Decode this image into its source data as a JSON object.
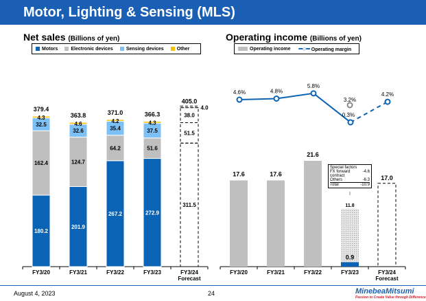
{
  "header": {
    "title": "Motor, Lighting & Sensing (MLS)"
  },
  "net_sales": {
    "title": "Net sales",
    "unit": "(Billions of yen)"
  },
  "operating": {
    "title": "Operating income",
    "unit": "(Billions of yen)"
  },
  "special_factors": {
    "title": "Special factors",
    "rows": [
      {
        "label": "FX forward contract",
        "value": "-4.6"
      },
      {
        "label": "Others",
        "value": "-6.3"
      },
      {
        "label": "Total",
        "value": "-10.9"
      }
    ]
  },
  "footer": {
    "date": "August 4, 2023",
    "page": "24",
    "logo": "MinebeaMitsumi",
    "tagline": "Passion to Create Value through Difference"
  },
  "chart_data": [
    {
      "type": "bar",
      "stacked": true,
      "title": "Net sales (Billions of yen)",
      "categories": [
        "FY3/20",
        "FY3/21",
        "FY3/22",
        "FY3/23",
        "FY3/24 Forecast"
      ],
      "series": [
        {
          "name": "Motors",
          "color": "#0b63b5",
          "values": [
            180.2,
            201.9,
            267.2,
            272.9,
            311.5
          ]
        },
        {
          "name": "Electronic devices",
          "color": "#bfbfbf",
          "values": [
            162.4,
            124.7,
            64.2,
            51.6,
            51.5
          ]
        },
        {
          "name": "Sensing devices",
          "color": "#7cc0f5",
          "values": [
            32.5,
            32.6,
            35.4,
            37.5,
            38.0
          ]
        },
        {
          "name": "Other",
          "color": "#f5c000",
          "values": [
            4.3,
            4.6,
            4.2,
            4.3,
            4.0
          ]
        }
      ],
      "totals": [
        "379.4",
        "363.8",
        "371.0",
        "366.3",
        "405.0"
      ],
      "forecast_index": 4
    },
    {
      "type": "bar",
      "title": "Operating income (Billions of yen)",
      "categories": [
        "FY3/20",
        "FY3/21",
        "FY3/22",
        "FY3/23",
        "FY3/24 Forecast"
      ],
      "series": [
        {
          "name": "Operating income",
          "color": "#bfbfbf",
          "values": [
            17.6,
            17.6,
            21.6,
            0.9,
            17.0
          ]
        },
        {
          "name": "Operating margin",
          "color": "#0b63b5",
          "type": "line",
          "values": [
            4.6,
            4.8,
            5.8,
            0.3,
            4.2
          ],
          "labels": [
            "4.6%",
            "4.8%",
            "5.8%",
            "0.3%",
            "4.2%"
          ]
        }
      ],
      "excluding_special_factors": {
        "income": 11.8,
        "margin": 3.2,
        "margin_label": "3.2%"
      }
    }
  ]
}
